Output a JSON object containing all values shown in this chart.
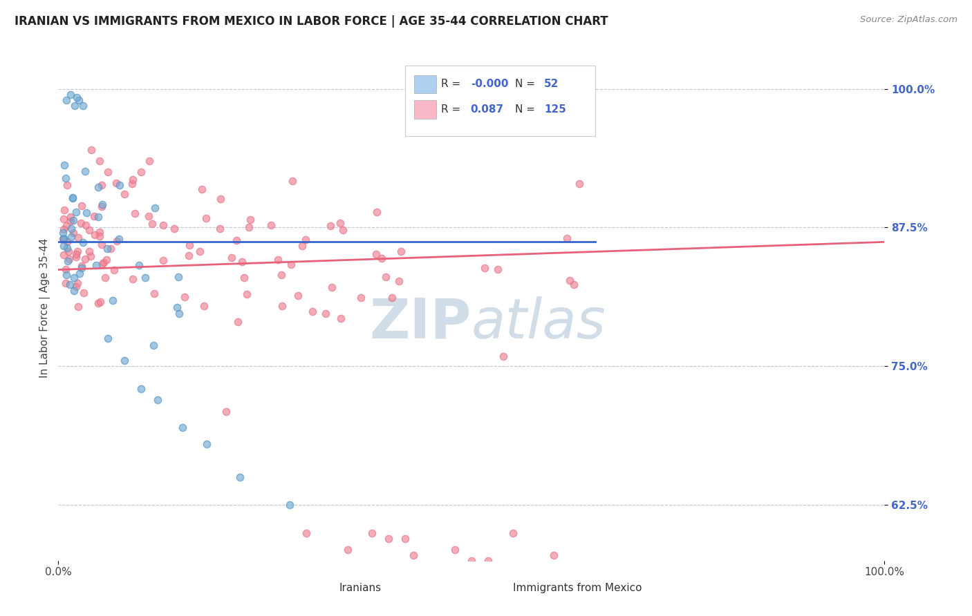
{
  "title": "IRANIAN VS IMMIGRANTS FROM MEXICO IN LABOR FORCE | AGE 35-44 CORRELATION CHART",
  "source": "Source: ZipAtlas.com",
  "ylabel": "In Labor Force | Age 35-44",
  "y_ticks": [
    0.625,
    0.75,
    0.875,
    1.0
  ],
  "y_tick_labels": [
    "62.5%",
    "75.0%",
    "87.5%",
    "100.0%"
  ],
  "x_tick_left": "0.0%",
  "x_tick_right": "100.0%",
  "legend_R1": "-0.000",
  "legend_N1": "52",
  "legend_R2": "0.087",
  "legend_N2": "125",
  "legend_label1": "Iranians",
  "legend_label2": "Immigrants from Mexico",
  "iranian_dot_color": "#6faad4",
  "mexican_dot_color": "#f08090",
  "iranian_line_color": "#3366cc",
  "mexican_line_color": "#e8607a",
  "legend_box1_color": "#aed0f0",
  "legend_box2_color": "#f8b8c8",
  "grid_color": "#b8c8d8",
  "background_color": "#ffffff",
  "watermark_color": "#d0dde8",
  "title_color": "#222222",
  "source_color": "#888888",
  "tick_color": "#4466cc",
  "scatter_size": 55,
  "scatter_alpha": 0.65,
  "scatter_linewidth": 1.0,
  "scatter_edgecolor_iran": "#5090c0",
  "scatter_edgecolor_mex": "#e07088"
}
